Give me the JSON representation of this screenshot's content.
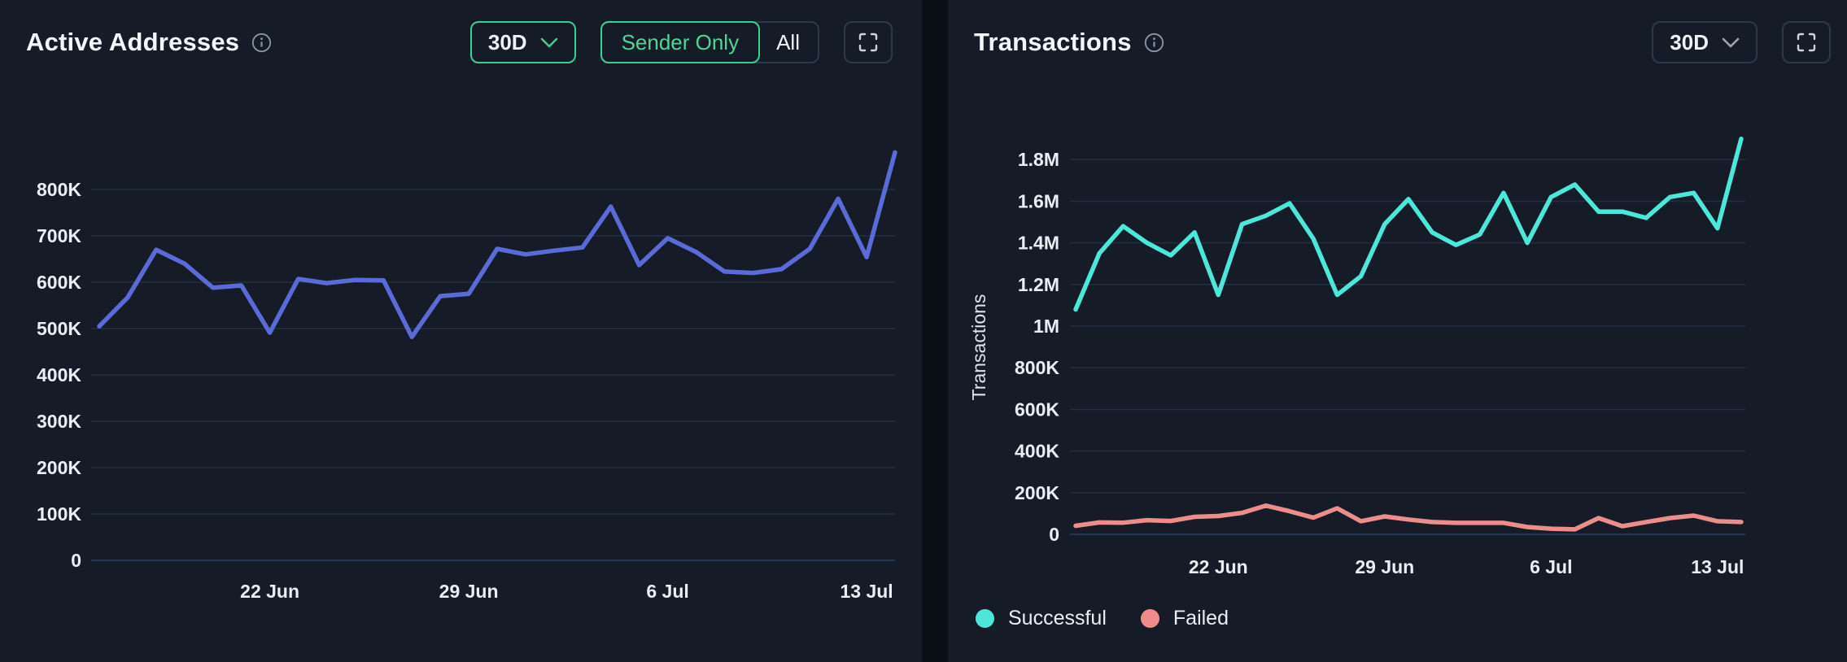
{
  "colors": {
    "page_bg": "#0a0f16",
    "panel_bg": "#151c28",
    "accent_green": "#3ecf8e",
    "active_addresses_line": "#5b6ad9",
    "successful_line": "#4be8d9",
    "failed_line": "#ee8c8c"
  },
  "left_panel": {
    "title": "Active Addresses",
    "range_label": "30D",
    "toggle_options": [
      "Sender Only",
      "All"
    ],
    "toggle_selected": "Sender Only"
  },
  "right_panel": {
    "title": "Transactions",
    "range_label": "30D"
  },
  "chart_data": [
    {
      "type": "line",
      "title": "Active Addresses",
      "xlabel": "",
      "ylabel": "",
      "grid": true,
      "legend_position": "none",
      "ylim": [
        0,
        910000
      ],
      "x_tick_labels": [
        "22 Jun",
        "29 Jun",
        "6 Jul",
        "13 Jul"
      ],
      "x_tick_indices": [
        6,
        13,
        20,
        27
      ],
      "y_ticks": [
        {
          "value": 0,
          "label": "0"
        },
        {
          "value": 100000,
          "label": "100K"
        },
        {
          "value": 200000,
          "label": "200K"
        },
        {
          "value": 300000,
          "label": "300K"
        },
        {
          "value": 400000,
          "label": "400K"
        },
        {
          "value": 500000,
          "label": "500K"
        },
        {
          "value": 600000,
          "label": "600K"
        },
        {
          "value": 700000,
          "label": "700K"
        },
        {
          "value": 800000,
          "label": "800K"
        }
      ],
      "series": [
        {
          "name": "Active Addresses",
          "color": "#5b6ad9",
          "values": [
            505000,
            567000,
            670000,
            640000,
            588000,
            593000,
            491000,
            607000,
            598000,
            605000,
            604000,
            482000,
            570000,
            575000,
            672000,
            660000,
            668000,
            675000,
            763000,
            637000,
            695000,
            665000,
            623000,
            620000,
            628000,
            672000,
            780000,
            654000,
            880000
          ]
        }
      ]
    },
    {
      "type": "line",
      "title": "Transactions",
      "xlabel": "",
      "ylabel": "Transactions",
      "grid": true,
      "legend_position": "bottom-left",
      "ylim": [
        0,
        1950000
      ],
      "x_tick_labels": [
        "22 Jun",
        "29 Jun",
        "6 Jul",
        "13 Jul"
      ],
      "x_tick_indices": [
        6,
        13,
        20,
        27
      ],
      "y_ticks": [
        {
          "value": 0,
          "label": "0"
        },
        {
          "value": 200000,
          "label": "200K"
        },
        {
          "value": 400000,
          "label": "400K"
        },
        {
          "value": 600000,
          "label": "600K"
        },
        {
          "value": 800000,
          "label": "800K"
        },
        {
          "value": 1000000,
          "label": "1M"
        },
        {
          "value": 1200000,
          "label": "1.2M"
        },
        {
          "value": 1400000,
          "label": "1.4M"
        },
        {
          "value": 1600000,
          "label": "1.6M"
        },
        {
          "value": 1800000,
          "label": "1.8M"
        }
      ],
      "series": [
        {
          "name": "Successful",
          "color": "#4be8d9",
          "values": [
            1080000,
            1350000,
            1480000,
            1400000,
            1340000,
            1450000,
            1150000,
            1490000,
            1530000,
            1590000,
            1420000,
            1150000,
            1240000,
            1490000,
            1610000,
            1450000,
            1390000,
            1440000,
            1640000,
            1400000,
            1620000,
            1680000,
            1550000,
            1550000,
            1520000,
            1620000,
            1640000,
            1470000,
            1900000
          ]
        },
        {
          "name": "Failed",
          "color": "#ee8c8c",
          "values": [
            41000,
            57000,
            56000,
            68000,
            64000,
            84000,
            88000,
            103000,
            138000,
            111000,
            80000,
            125000,
            63000,
            86000,
            71000,
            59000,
            55000,
            55000,
            55000,
            35000,
            27000,
            24000,
            78000,
            39000,
            59000,
            78000,
            90000,
            63000,
            59000
          ]
        }
      ]
    }
  ]
}
